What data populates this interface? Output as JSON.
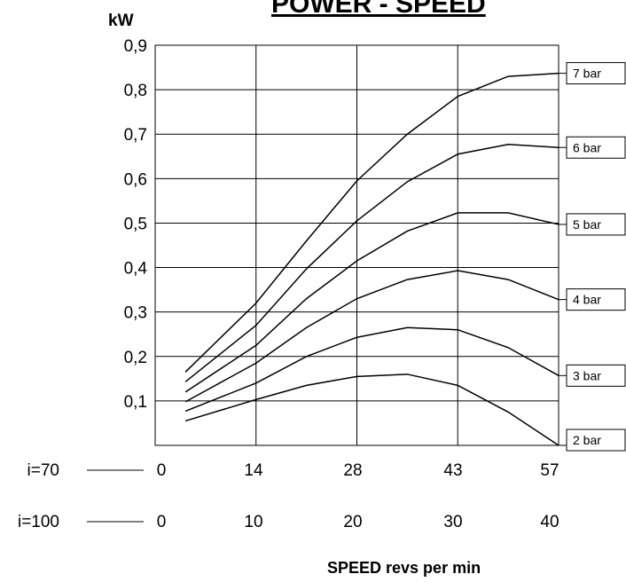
{
  "chart_data": {
    "type": "line",
    "title": "POWER - SPEED",
    "ylabel": "kW",
    "xlabel": "SPEED revs per min",
    "ylim": [
      0,
      0.9
    ],
    "yticks": [
      "0,9",
      "0,8",
      "0,7",
      "0,6",
      "0,5",
      "0,4",
      "0,3",
      "0,2",
      "0,1"
    ],
    "ytick_values": [
      0.9,
      0.8,
      0.7,
      0.6,
      0.5,
      0.4,
      0.3,
      0.2,
      0.1
    ],
    "x_scales": [
      {
        "label": "i=70",
        "ticks": [
          "0",
          "14",
          "28",
          "43",
          "57"
        ]
      },
      {
        "label": "i=100",
        "ticks": [
          "0",
          "10",
          "20",
          "30",
          "40"
        ]
      }
    ],
    "xlim_i100": [
      0,
      40
    ],
    "grid": true,
    "x_i100": [
      3,
      10,
      15,
      20,
      25,
      30,
      35,
      40
    ],
    "series": [
      {
        "name": "7 bar",
        "values": [
          0.165,
          0.32,
          0.46,
          0.595,
          0.7,
          0.785,
          0.83,
          0.837
        ]
      },
      {
        "name": "6 bar",
        "values": [
          0.143,
          0.27,
          0.397,
          0.505,
          0.593,
          0.655,
          0.677,
          0.67
        ]
      },
      {
        "name": "5 bar",
        "values": [
          0.12,
          0.225,
          0.33,
          0.415,
          0.482,
          0.523,
          0.523,
          0.497
        ]
      },
      {
        "name": "4 bar",
        "values": [
          0.098,
          0.185,
          0.265,
          0.33,
          0.373,
          0.393,
          0.373,
          0.328
        ]
      },
      {
        "name": "3 bar",
        "values": [
          0.077,
          0.14,
          0.2,
          0.243,
          0.265,
          0.26,
          0.22,
          0.157
        ]
      },
      {
        "name": "2 bar",
        "values": [
          0.055,
          0.103,
          0.135,
          0.155,
          0.16,
          0.135,
          0.075,
          0.0
        ]
      }
    ]
  }
}
